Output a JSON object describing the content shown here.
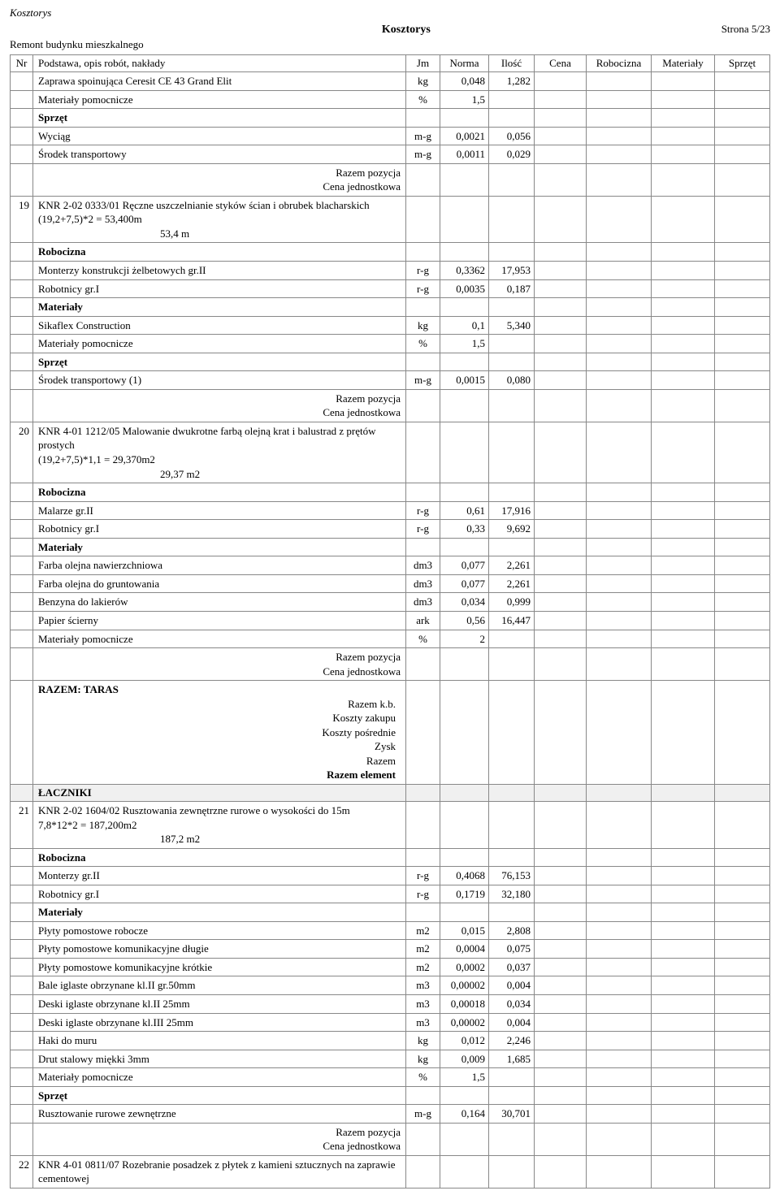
{
  "header": {
    "doc_label": "Kosztorys",
    "main_title": "Kosztorys",
    "page_label": "Strona 5/23",
    "subtitle": "Remont budynku mieszkalnego"
  },
  "columns": {
    "nr": "Nr",
    "desc": "Podstawa, opis robót, nakłady",
    "jm": "Jm",
    "norma": "Norma",
    "ilosc": "Ilość",
    "cena": "Cena",
    "robo": "Robocizna",
    "mat": "Materiały",
    "sprz": "Sprzęt"
  },
  "labels": {
    "razem_pozycja": "Razem pozycja",
    "cena_jedn": "Cena jednostkowa",
    "robocizna": "Robocizna",
    "materialy": "Materiały",
    "sprzet": "Sprzęt"
  },
  "pre_items": [
    {
      "desc": "Zaprawa spoinująca Ceresit CE 43 Grand Elit",
      "jm": "kg",
      "norma": "0,048",
      "ilosc": "1,282"
    },
    {
      "desc": "Materiały pomocnicze",
      "jm": "%",
      "norma": "1,5",
      "ilosc": ""
    },
    {
      "desc": "Sprzęt",
      "bold": true
    },
    {
      "desc": "Wyciąg",
      "jm": "m-g",
      "norma": "0,0021",
      "ilosc": "0,056"
    },
    {
      "desc": "Środek transportowy",
      "jm": "m-g",
      "norma": "0,0011",
      "ilosc": "0,029"
    }
  ],
  "items": [
    {
      "nr": "19",
      "title": "KNR 2-02 0333/01  Ręczne uszczelnianie styków ścian i obrubek blacharskich",
      "calc": "(19,2+7,5)*2 = 53,400m",
      "calc_center": "53,4  m",
      "rows": [
        {
          "desc": "Robocizna",
          "bold": true
        },
        {
          "desc": "Monterzy konstrukcji żelbetowych gr.II",
          "jm": "r-g",
          "norma": "0,3362",
          "ilosc": "17,953"
        },
        {
          "desc": "Robotnicy gr.I",
          "jm": "r-g",
          "norma": "0,0035",
          "ilosc": "0,187"
        },
        {
          "desc": "Materiały",
          "bold": true
        },
        {
          "desc": "Sikaflex Construction",
          "jm": "kg",
          "norma": "0,1",
          "ilosc": "5,340"
        },
        {
          "desc": "Materiały pomocnicze",
          "jm": "%",
          "norma": "1,5",
          "ilosc": ""
        },
        {
          "desc": "Sprzęt",
          "bold": true
        },
        {
          "desc": "Środek transportowy (1)",
          "jm": "m-g",
          "norma": "0,0015",
          "ilosc": "0,080"
        }
      ]
    },
    {
      "nr": "20",
      "title": "KNR 4-01 1212/05  Malowanie dwukrotne farbą olejną krat i balustrad z prętów prostych",
      "calc": "(19,2+7,5)*1,1 = 29,370m2",
      "calc_center": "29,37  m2",
      "rows": [
        {
          "desc": "Robocizna",
          "bold": true
        },
        {
          "desc": "Malarze gr.II",
          "jm": "r-g",
          "norma": "0,61",
          "ilosc": "17,916"
        },
        {
          "desc": "Robotnicy gr.I",
          "jm": "r-g",
          "norma": "0,33",
          "ilosc": "9,692"
        },
        {
          "desc": "Materiały",
          "bold": true
        },
        {
          "desc": "Farba olejna nawierzchniowa",
          "jm": "dm3",
          "norma": "0,077",
          "ilosc": "2,261"
        },
        {
          "desc": "Farba olejna do gruntowania",
          "jm": "dm3",
          "norma": "0,077",
          "ilosc": "2,261"
        },
        {
          "desc": "Benzyna do lakierów",
          "jm": "dm3",
          "norma": "0,034",
          "ilosc": "0,999"
        },
        {
          "desc": "Papier ścierny",
          "jm": "ark",
          "norma": "0,56",
          "ilosc": "16,447"
        },
        {
          "desc": "Materiały pomocnicze",
          "jm": "%",
          "norma": "2",
          "ilosc": ""
        }
      ]
    }
  ],
  "taras_summary": {
    "title": "RAZEM: TARAS",
    "lines": [
      "Razem k.b.",
      "Koszty zakupu",
      "Koszty pośrednie",
      "Zysk",
      "Razem",
      "Razem element"
    ]
  },
  "section_header": "ŁACZNIKI",
  "items2": [
    {
      "nr": "21",
      "title": "KNR 2-02 1604/02  Rusztowania zewnętrzne rurowe o wysokości do 15m",
      "calc": "7,8*12*2 = 187,200m2",
      "calc_center": "187,2  m2",
      "rows": [
        {
          "desc": "Robocizna",
          "bold": true
        },
        {
          "desc": "Monterzy gr.II",
          "jm": "r-g",
          "norma": "0,4068",
          "ilosc": "76,153"
        },
        {
          "desc": "Robotnicy gr.I",
          "jm": "r-g",
          "norma": "0,1719",
          "ilosc": "32,180"
        },
        {
          "desc": "Materiały",
          "bold": true
        },
        {
          "desc": "Płyty pomostowe robocze",
          "jm": "m2",
          "norma": "0,015",
          "ilosc": "2,808"
        },
        {
          "desc": "Płyty pomostowe komunikacyjne długie",
          "jm": "m2",
          "norma": "0,0004",
          "ilosc": "0,075"
        },
        {
          "desc": "Płyty pomostowe komunikacyjne krótkie",
          "jm": "m2",
          "norma": "0,0002",
          "ilosc": "0,037"
        },
        {
          "desc": "Bale iglaste obrzynane kl.II gr.50mm",
          "jm": "m3",
          "norma": "0,00002",
          "ilosc": "0,004"
        },
        {
          "desc": "Deski iglaste obrzynane kl.II 25mm",
          "jm": "m3",
          "norma": "0,00018",
          "ilosc": "0,034"
        },
        {
          "desc": "Deski iglaste obrzynane kl.III 25mm",
          "jm": "m3",
          "norma": "0,00002",
          "ilosc": "0,004"
        },
        {
          "desc": "Haki do muru",
          "jm": "kg",
          "norma": "0,012",
          "ilosc": "2,246"
        },
        {
          "desc": "Drut stalowy miękki 3mm",
          "jm": "kg",
          "norma": "0,009",
          "ilosc": "1,685"
        },
        {
          "desc": "Materiały pomocnicze",
          "jm": "%",
          "norma": "1,5",
          "ilosc": ""
        },
        {
          "desc": "Sprzęt",
          "bold": true
        },
        {
          "desc": "Rusztowanie rurowe zewnętrzne",
          "jm": "m-g",
          "norma": "0,164",
          "ilosc": "30,701"
        }
      ]
    },
    {
      "nr": "22",
      "title": "KNR 4-01 0811/07  Rozebranie posadzek z płytek z kamieni sztucznych na zaprawie cementowej",
      "calc": "",
      "calc_center": "",
      "rows": []
    }
  ]
}
